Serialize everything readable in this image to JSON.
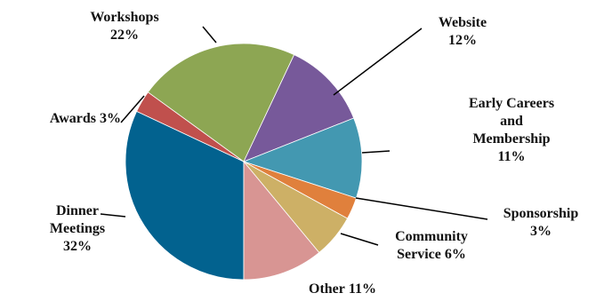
{
  "chart_data": {
    "type": "pie",
    "categories": [
      "Dinner Meetings",
      "Awards",
      "Workshops",
      "Website",
      "Early Careers and Membership",
      "Sponsorship",
      "Community Service",
      "Other"
    ],
    "values": [
      32,
      3,
      22,
      12,
      11,
      3,
      6,
      11
    ],
    "value_labels": [
      "32%",
      "3%",
      "22%",
      "12%",
      "11%",
      "3%",
      "6%",
      "11%"
    ],
    "colors": [
      "#02628f",
      "#c0504d",
      "#8da653",
      "#77599a",
      "#4398b1",
      "#e0803c",
      "#cdb066",
      "#d89593"
    ]
  }
}
